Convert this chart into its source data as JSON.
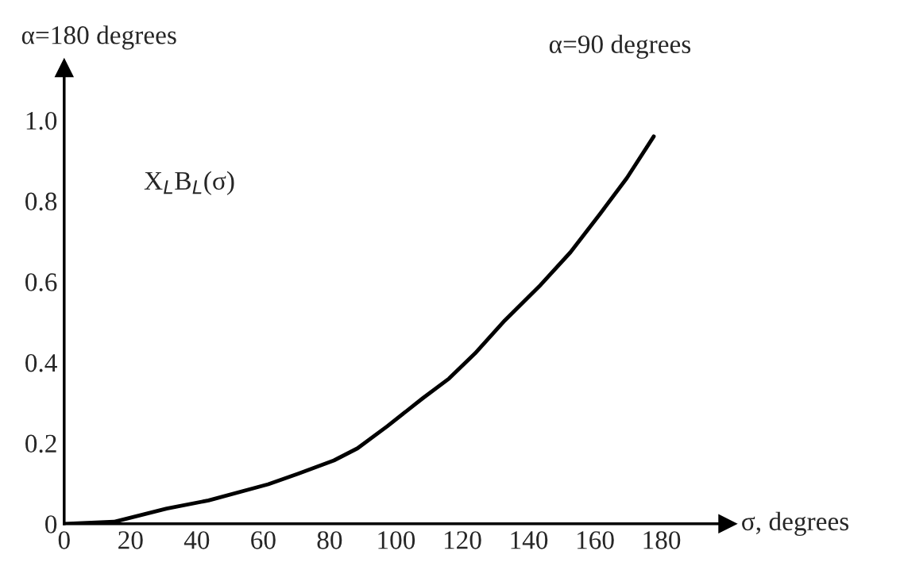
{
  "chart_data": {
    "type": "line",
    "ylabel": "α=180 degrees",
    "xlabel": "σ, degrees",
    "annotations": [
      "α=90 degrees",
      "X$_{L}$B$_{L}$(σ)"
    ],
    "series": [
      {
        "color": "#000000",
        "x": [
          0,
          15,
          30.9,
          43.5,
          61.5,
          70.5,
          81.3,
          88.4,
          97.4,
          108.2,
          116,
          123.8,
          132.8,
          143.6,
          152.6,
          161.6,
          169.6,
          177.7
        ],
        "values": [
          0,
          0.005,
          0.038,
          0.058,
          0.098,
          0.124,
          0.157,
          0.187,
          0.242,
          0.312,
          0.36,
          0.422,
          0.504,
          0.592,
          0.673,
          0.769,
          0.857,
          0.96
        ]
      }
    ],
    "xlim": [
      0,
      200
    ],
    "ylim": [
      0,
      1.13
    ],
    "xticks": [
      0,
      20,
      40,
      60,
      80,
      100,
      120,
      140,
      160,
      180
    ],
    "yticks": [
      0,
      0.2,
      0.4,
      0.6,
      0.8,
      {
        "value": 1.0,
        "label": "1.0"
      }
    ],
    "grid": false,
    "legend": false,
    "marker": "none",
    "line_style": "solid"
  }
}
